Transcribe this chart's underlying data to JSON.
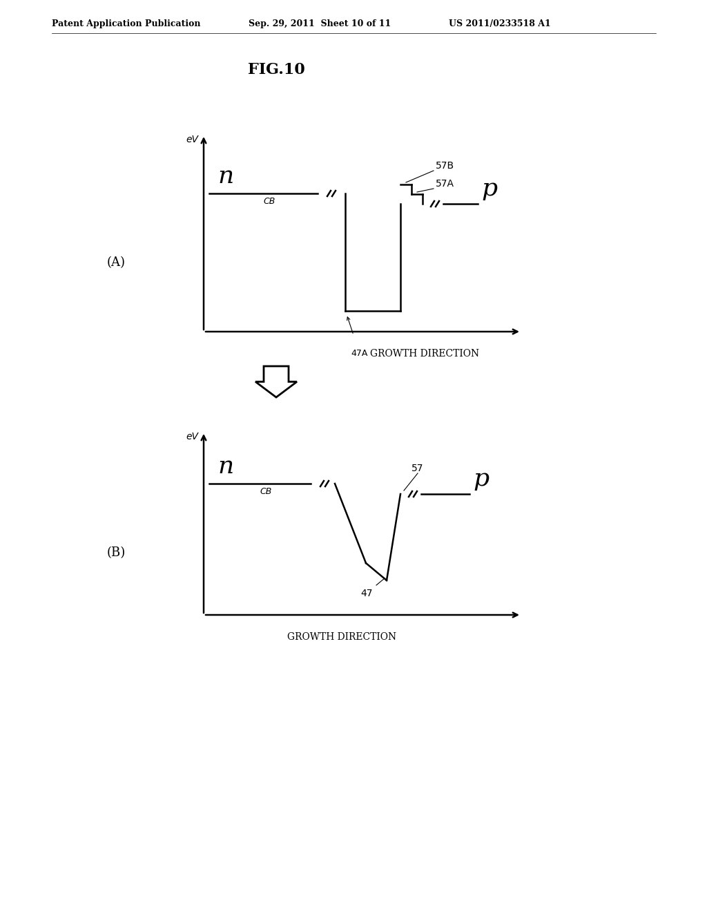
{
  "title": "FIG.10",
  "header_left": "Patent Application Publication",
  "header_mid": "Sep. 29, 2011  Sheet 10 of 11",
  "header_right": "US 2011/0233518 A1",
  "background_color": "#ffffff",
  "line_color": "#000000",
  "label_A": "(A)",
  "label_B": "(B)",
  "ev_label": "eV",
  "cb_label": "CB",
  "n_label": "n",
  "p_label": "p",
  "growth_dir_label": "GROWTH DIRECTION",
  "label_47A": "47A",
  "label_57A": "57A",
  "label_57B": "57B",
  "label_47": "47",
  "label_57": "57"
}
